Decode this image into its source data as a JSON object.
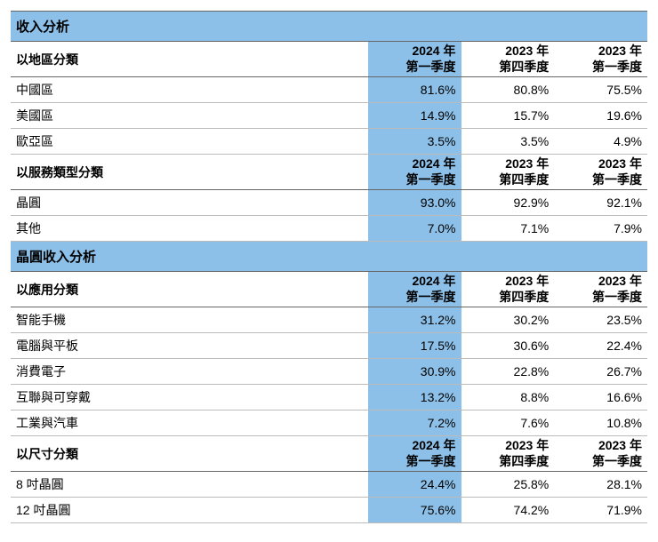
{
  "colors": {
    "highlight_bg": "#8cc0e8",
    "border": "#666666",
    "row_border": "#bbbbbb",
    "text": "#000000"
  },
  "periods": [
    {
      "year": "2024 年",
      "quarter": "第一季度",
      "highlight": true
    },
    {
      "year": "2023 年",
      "quarter": "第四季度",
      "highlight": false
    },
    {
      "year": "2023 年",
      "quarter": "第一季度",
      "highlight": false
    }
  ],
  "sections": [
    {
      "title": "收入分析",
      "groups": [
        {
          "label": "以地區分類",
          "rows": [
            {
              "label": "中國區",
              "values": [
                "81.6%",
                "80.8%",
                "75.5%"
              ]
            },
            {
              "label": "美國區",
              "values": [
                "14.9%",
                "15.7%",
                "19.6%"
              ]
            },
            {
              "label": "歐亞區",
              "values": [
                "3.5%",
                "3.5%",
                "4.9%"
              ]
            }
          ]
        },
        {
          "label": "以服務類型分類",
          "rows": [
            {
              "label": "晶圓",
              "values": [
                "93.0%",
                "92.9%",
                "92.1%"
              ]
            },
            {
              "label": "其他",
              "values": [
                "7.0%",
                "7.1%",
                "7.9%"
              ]
            }
          ]
        }
      ]
    },
    {
      "title": "晶圓收入分析",
      "groups": [
        {
          "label": "以應用分類",
          "rows": [
            {
              "label": "智能手機",
              "values": [
                "31.2%",
                "30.2%",
                "23.5%"
              ]
            },
            {
              "label": "電腦與平板",
              "values": [
                "17.5%",
                "30.6%",
                "22.4%"
              ]
            },
            {
              "label": "消費電子",
              "values": [
                "30.9%",
                "22.8%",
                "26.7%"
              ]
            },
            {
              "label": "互聯與可穿戴",
              "values": [
                "13.2%",
                "8.8%",
                "16.6%"
              ]
            },
            {
              "label": "工業與汽車",
              "values": [
                "7.2%",
                "7.6%",
                "10.8%"
              ]
            }
          ]
        },
        {
          "label": "以尺寸分類",
          "rows": [
            {
              "label": "8 吋晶圓",
              "values": [
                "24.4%",
                "25.8%",
                "28.1%"
              ]
            },
            {
              "label": "12 吋晶圓",
              "values": [
                "75.6%",
                "74.2%",
                "71.9%"
              ]
            }
          ]
        }
      ]
    }
  ]
}
